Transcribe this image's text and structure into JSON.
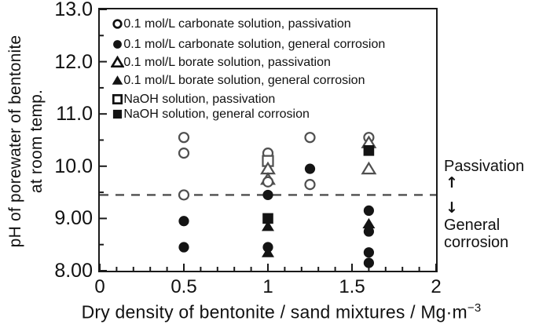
{
  "chart_data": {
    "type": "scatter",
    "x_axis": {
      "label": "Dry density of bentonite / sand mixtures / Mg·m",
      "label_sup": "−3",
      "tick_labels": [
        "0",
        "0.5",
        "1",
        "1.5",
        "2"
      ],
      "tick_values": [
        0,
        0.5,
        1,
        1.5,
        2
      ],
      "min": 0,
      "max": 2,
      "minor_step": 0.1
    },
    "y_axis": {
      "label_line1": "pH of porewater of bentonite",
      "label_line2": "at room temp.",
      "tick_labels": [
        "13.0",
        "12.0",
        "11.0",
        "10.0",
        "9.00",
        "8.00"
      ],
      "tick_values": [
        13,
        12,
        11,
        10,
        9,
        8
      ],
      "min": 8,
      "max": 13,
      "minor_step": 0.5
    },
    "legend_separator": ":",
    "legend": [
      {
        "marker": "circle-open",
        "label": "0.1 mol/L carbonate solution, passivation"
      },
      {
        "marker": "circle-filled",
        "label": "0.1 mol/L carbonate solution, general corrosion"
      },
      {
        "marker": "triangle-open",
        "label": "0.1 mol/L borate solution, passivation"
      },
      {
        "marker": "triangle-filled",
        "label": "0.1 mol/L borate solution, general corrosion"
      },
      {
        "marker": "square-open",
        "label": "NaOH solution, passivation"
      },
      {
        "marker": "square-filled",
        "label": "NaOH solution, general corrosion"
      }
    ],
    "dashed_line_ph": 9.45,
    "points": [
      {
        "series": 0,
        "x": 0.5,
        "ph": 10.55
      },
      {
        "series": 0,
        "x": 0.5,
        "ph": 10.25
      },
      {
        "series": 0,
        "x": 0.5,
        "ph": 9.45
      },
      {
        "series": 1,
        "x": 0.5,
        "ph": 8.95
      },
      {
        "series": 1,
        "x": 0.5,
        "ph": 8.45
      },
      {
        "series": 0,
        "x": 1.0,
        "ph": 10.25
      },
      {
        "series": 4,
        "x": 1.0,
        "ph": 10.1
      },
      {
        "series": 2,
        "x": 1.0,
        "ph": 9.95
      },
      {
        "series": 2,
        "x": 1.0,
        "ph": 9.75
      },
      {
        "series": 0,
        "x": 1.0,
        "ph": 9.7
      },
      {
        "series": 1,
        "x": 1.0,
        "ph": 9.45
      },
      {
        "series": 3,
        "x": 1.0,
        "ph": 8.85
      },
      {
        "series": 5,
        "x": 1.0,
        "ph": 9.0
      },
      {
        "series": 3,
        "x": 1.0,
        "ph": 8.35
      },
      {
        "series": 1,
        "x": 1.0,
        "ph": 8.45
      },
      {
        "series": 0,
        "x": 1.25,
        "ph": 10.55
      },
      {
        "series": 1,
        "x": 1.25,
        "ph": 9.95
      },
      {
        "series": 0,
        "x": 1.25,
        "ph": 9.65
      },
      {
        "series": 0,
        "x": 1.6,
        "ph": 10.55
      },
      {
        "series": 2,
        "x": 1.6,
        "ph": 10.45
      },
      {
        "series": 5,
        "x": 1.6,
        "ph": 10.3
      },
      {
        "series": 2,
        "x": 1.6,
        "ph": 9.95
      },
      {
        "series": 1,
        "x": 1.6,
        "ph": 9.15
      },
      {
        "series": 3,
        "x": 1.6,
        "ph": 8.9
      },
      {
        "series": 1,
        "x": 1.6,
        "ph": 8.75
      },
      {
        "series": 1,
        "x": 1.6,
        "ph": 8.35
      },
      {
        "series": 1,
        "x": 1.6,
        "ph": 8.15
      }
    ],
    "annotations": {
      "passivation": "Passivation",
      "arrow_up": "↑",
      "arrow_down": "↓",
      "general_corrosion": "General\ncorrosion"
    }
  },
  "colors": {
    "text": "#111111",
    "frame": "#1a1a1a",
    "filled_marker": "#141414",
    "open_marker_stroke": "#4f4f4f",
    "legend_marker_stroke": "#111111",
    "dashed_line": "#4f4f4f"
  }
}
